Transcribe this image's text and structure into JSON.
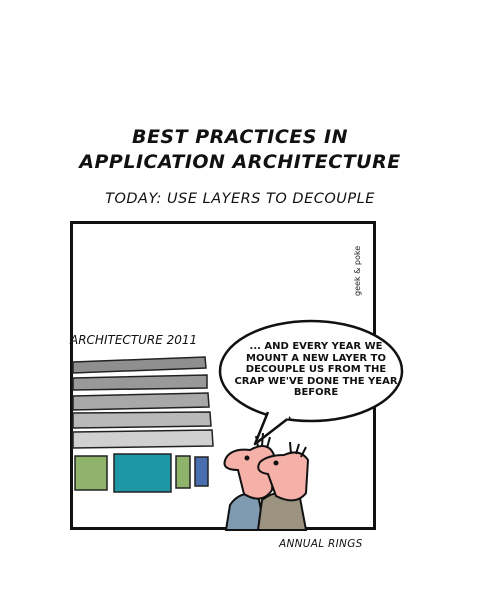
{
  "comic": {
    "title_line1": "BEST PRACTICES IN",
    "title_line2": "APPLICATION ARCHITECTURE",
    "subtitle": "TODAY: USE LAYERS TO DECOUPLE",
    "signature": "geek & poke",
    "architecture_label": "ARCHITECTURE 2011",
    "speech_bubble": "... AND EVERY YEAR WE MOUNT A NEW LAYER TO DECOUPLE US FROM THE CRAP WE'VE DONE THE YEAR BEFORE",
    "caption": "ANNUAL RINGS"
  },
  "colors": {
    "layer_gray": "#9e9e9e",
    "layer_light": "#cfcfcf",
    "box_green": "#8fb36b",
    "box_teal": "#1f96a3",
    "box_blue": "#4a6fb0",
    "skin": "#f5b1a8"
  }
}
